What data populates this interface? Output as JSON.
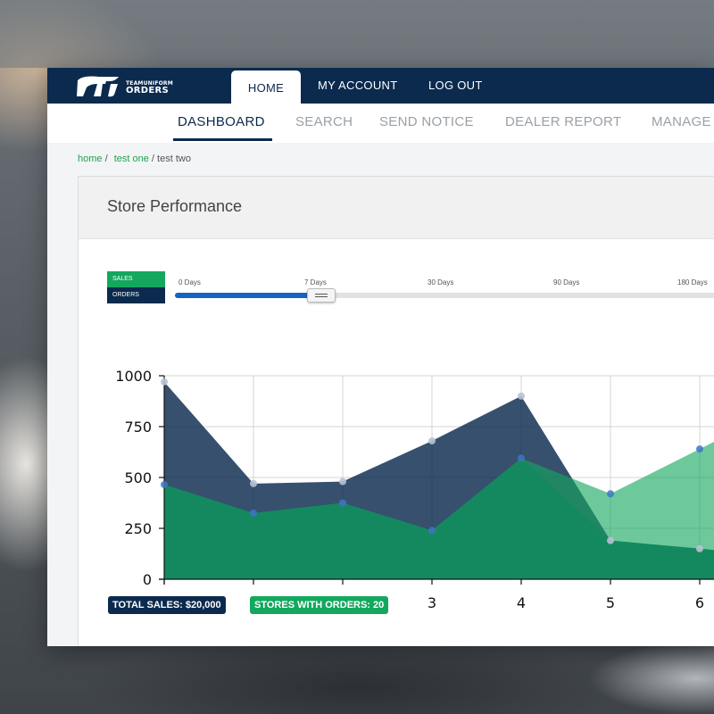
{
  "app": {
    "logo_line1": "TEAMUNIFORM",
    "logo_line2": "ORDERS"
  },
  "topnav": {
    "tabs": [
      {
        "label": "HOME",
        "active": true
      },
      {
        "label": "MY ACCOUNT"
      },
      {
        "label": "LOG OUT"
      }
    ]
  },
  "subnav": {
    "tabs": [
      {
        "label": "DASHBOARD",
        "active": true
      },
      {
        "label": "SEARCH"
      },
      {
        "label": "SEND NOTICE"
      },
      {
        "label": "DEALER REPORT"
      },
      {
        "label": "MANAGE"
      }
    ]
  },
  "breadcrumb": {
    "items": [
      "home",
      "test one",
      "test two"
    ],
    "separator": "/"
  },
  "panel": {
    "title": "Store Performance"
  },
  "legend": {
    "sales": "SALES",
    "orders": "ORDERS"
  },
  "range_slider": {
    "labels": [
      "0 Days",
      "7 Days",
      "30 Days",
      "90 Days",
      "180 Days"
    ],
    "selected": "7 Days"
  },
  "colors": {
    "navy": "#0b2a4e",
    "green": "#13a85e",
    "light_green": "#6dc795",
    "slider_blue": "#1565c0"
  },
  "chart_data": {
    "type": "area",
    "x": [
      0,
      1,
      2,
      3,
      4,
      5,
      6
    ],
    "xlim": [
      0,
      6.2
    ],
    "ylim": [
      0,
      1000
    ],
    "yticks": [
      0,
      250,
      500,
      750,
      1000
    ],
    "grid": true,
    "series": [
      {
        "name": "ORDERS",
        "color": "#0b2a4e",
        "values": [
          970,
          470,
          480,
          680,
          900,
          190,
          150
        ]
      },
      {
        "name": "SALES",
        "color": "#13a85e",
        "values": [
          465,
          325,
          375,
          240,
          595,
          420,
          640
        ]
      }
    ]
  },
  "badges": {
    "total_sales": "TOTAL SALES: $20,000",
    "stores_with_orders": "STORES WITH ORDERS: 20"
  }
}
